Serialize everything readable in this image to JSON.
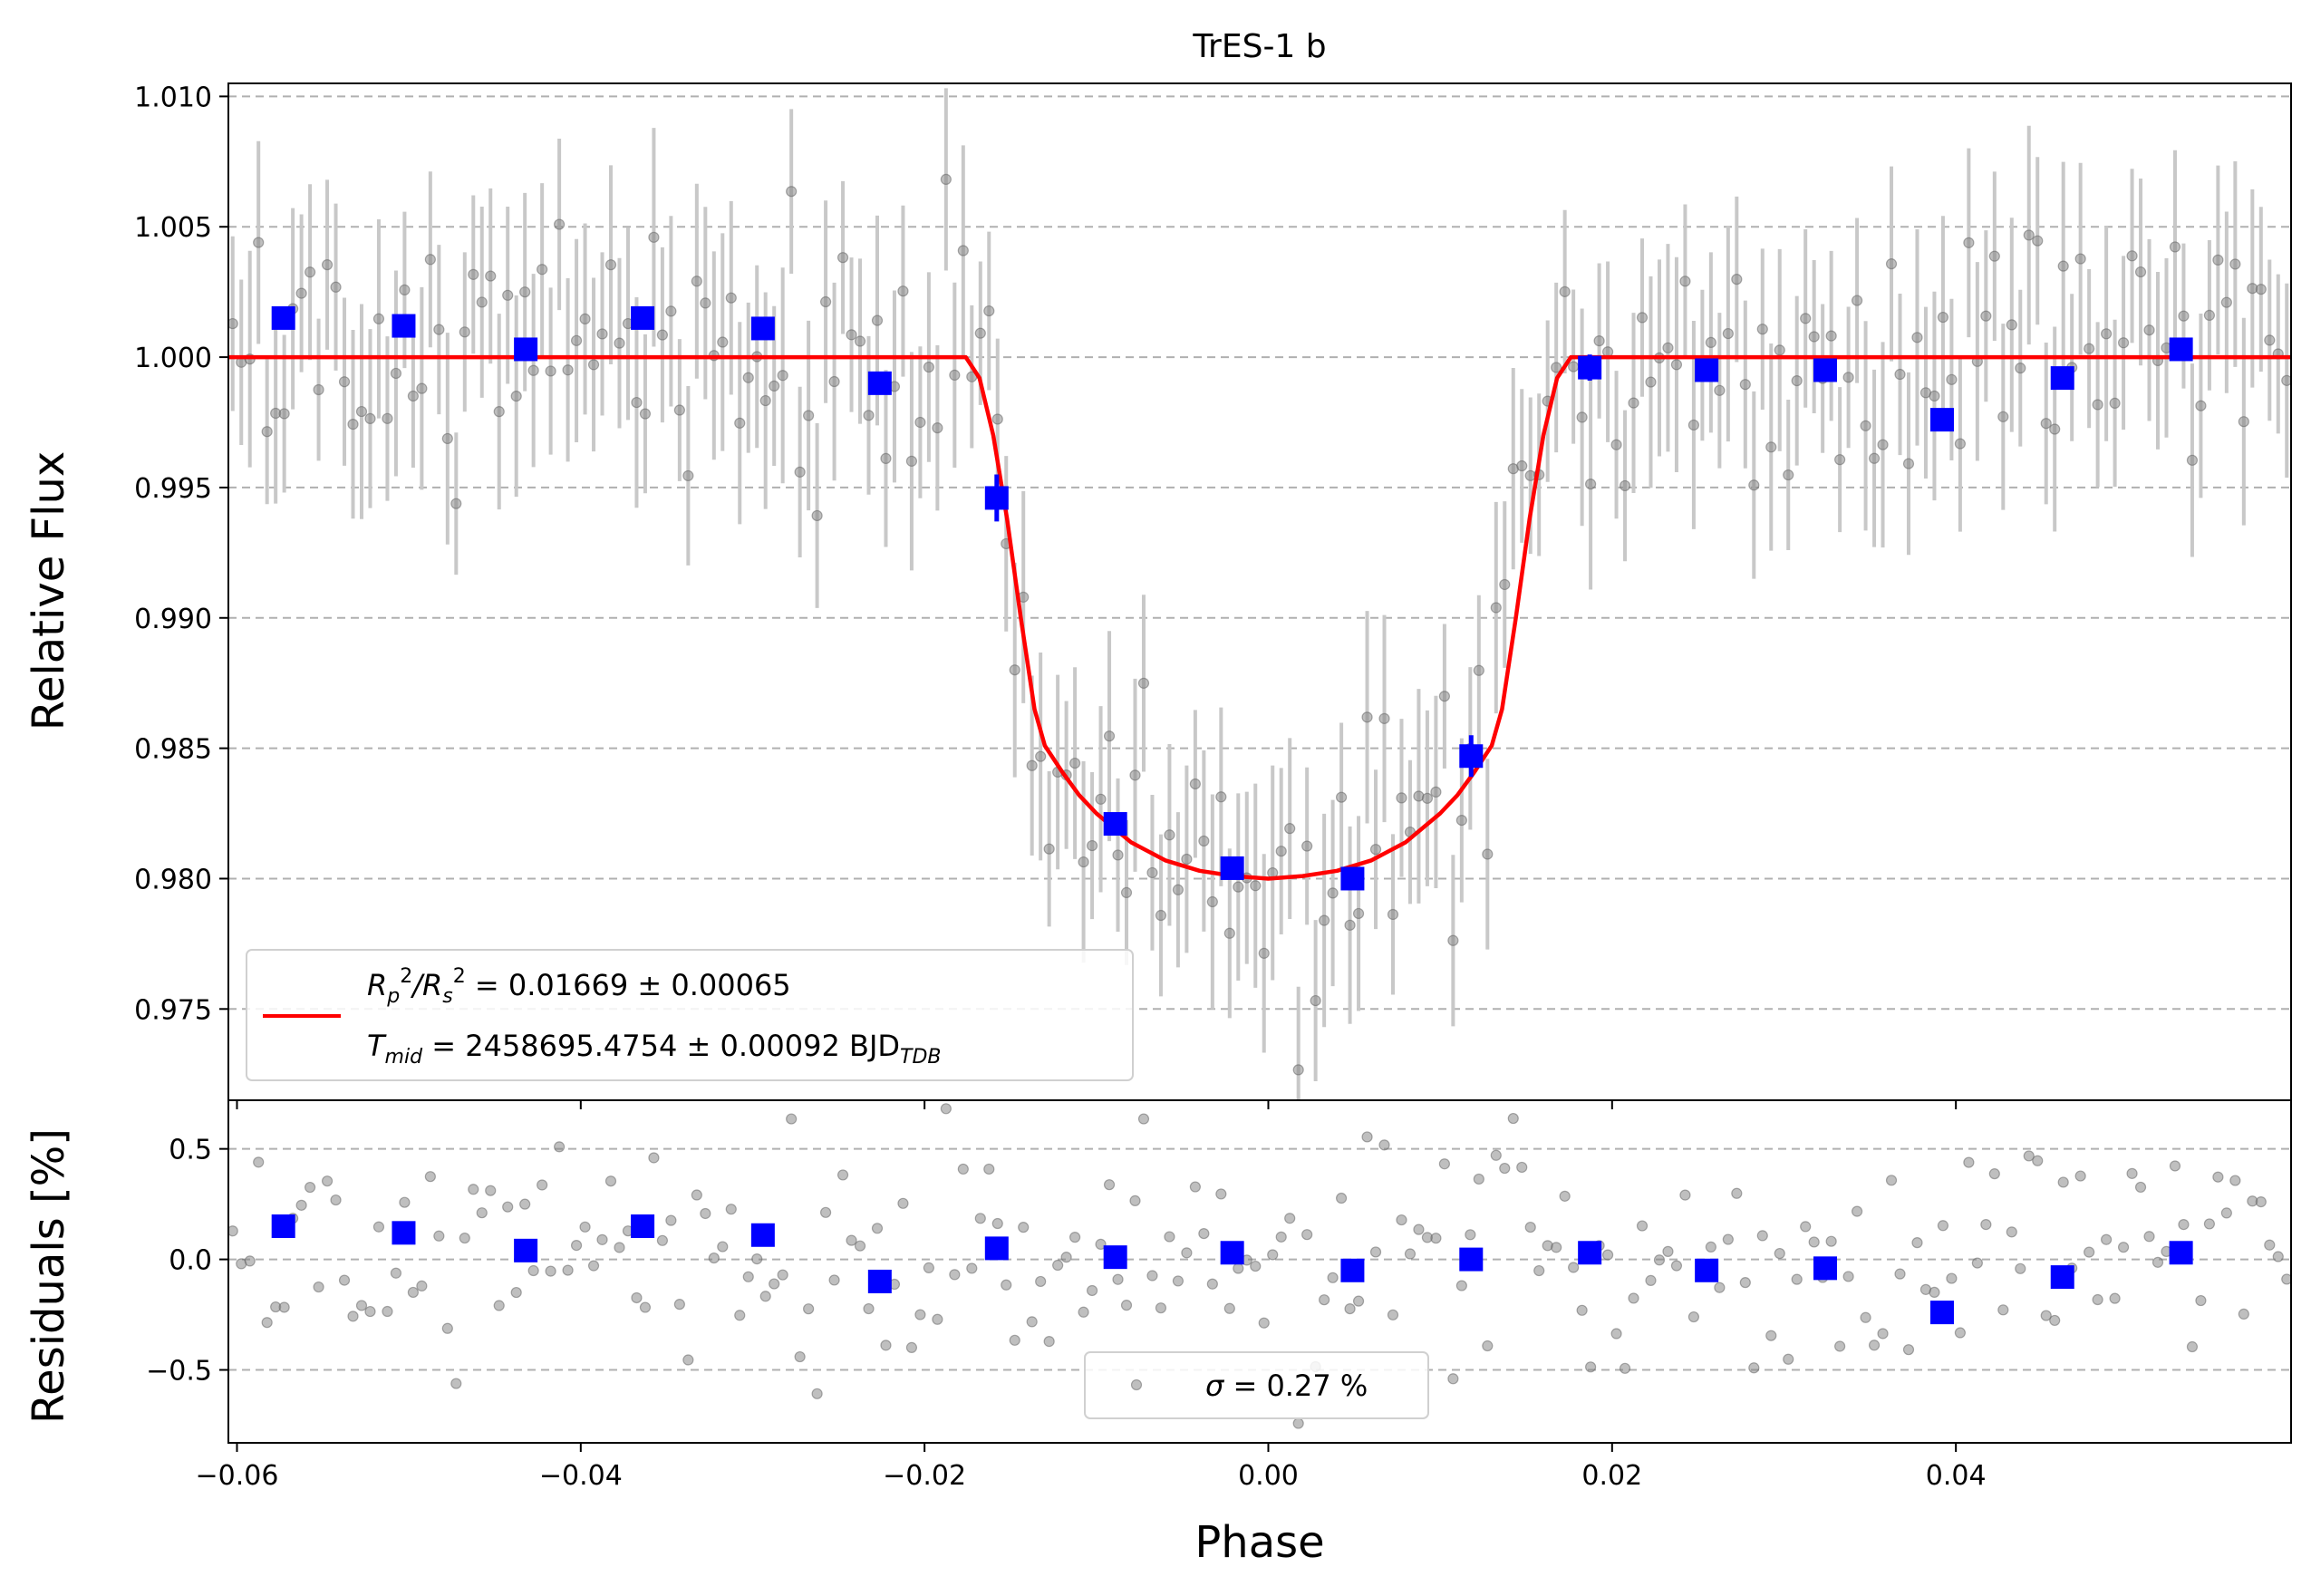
{
  "chart_data": [
    {
      "panel": "main",
      "type": "scatter",
      "title": "TrES-1 b",
      "xlabel": "",
      "ylabel": "Relative Flux",
      "xlim": [
        -0.0605,
        0.0595
      ],
      "ylim": [
        0.9715,
        1.0105
      ],
      "y_ticks": [
        "1.010",
        "1.005",
        "1.000",
        "0.995",
        "0.990",
        "0.985",
        "0.980",
        "0.975"
      ],
      "y_tick_values": [
        1.01,
        1.005,
        1.0,
        0.995,
        0.99,
        0.985,
        0.98,
        0.975
      ],
      "grid": "horizontal dashed",
      "colors": {
        "data": "#808080",
        "errorbar": "#c8c8c8",
        "binned": "#0000ff",
        "model": "#ff0000"
      },
      "model": {
        "name": "transit model",
        "x": [
          -0.0605,
          -0.0176,
          -0.0168,
          -0.016,
          -0.0152,
          -0.0144,
          -0.0136,
          -0.013,
          -0.012,
          -0.011,
          -0.01,
          -0.008,
          -0.006,
          -0.004,
          -0.002,
          0.0,
          0.002,
          0.004,
          0.006,
          0.008,
          0.01,
          0.011,
          0.012,
          0.013,
          0.0136,
          0.0144,
          0.0152,
          0.016,
          0.0168,
          0.0176,
          0.0595
        ],
        "y": [
          1.0,
          1.0,
          0.9992,
          0.997,
          0.9938,
          0.99,
          0.9865,
          0.9851,
          0.9841,
          0.9832,
          0.9825,
          0.9814,
          0.9807,
          0.9803,
          0.9801,
          0.98,
          0.9801,
          0.9803,
          0.9807,
          0.9814,
          0.9825,
          0.9832,
          0.9841,
          0.9851,
          0.9865,
          0.99,
          0.9938,
          0.997,
          0.9992,
          1.0,
          1.0
        ]
      },
      "binned": {
        "x": [
          -0.0573,
          -0.0503,
          -0.0432,
          -0.0364,
          -0.0294,
          -0.0226,
          -0.0158,
          -0.0089,
          -0.0021,
          0.0049,
          0.0118,
          0.0187,
          0.0255,
          0.0324,
          0.0392,
          0.0462,
          0.0531
        ],
        "y": [
          1.0015,
          1.0012,
          1.0003,
          1.0015,
          1.0011,
          0.999,
          0.9946,
          0.9821,
          0.9804,
          0.98,
          0.9847,
          0.9996,
          0.9995,
          0.9995,
          0.9976,
          0.9992,
          1.0003
        ],
        "err": [
          0.0004,
          0.0004,
          0.0004,
          0.0004,
          0.0004,
          0.0004,
          0.0009,
          0.0004,
          0.0004,
          0.0004,
          0.0008,
          0.0005,
          0.0003,
          0.0003,
          0.0004,
          0.0004,
          0.0004
        ]
      },
      "legend": {
        "placement": "lower-left",
        "line1": {
          "sym1": "R",
          "sub1": "p",
          "sup1": "2",
          "sep": "/",
          "sym2": "R",
          "sub2": "s",
          "sup2": "2",
          "value": " = 0.01669 ± 0.00065"
        },
        "line2": {
          "sym": "T",
          "sub": "mid",
          "value": " = 2458695.4754 ± 0.00092 BJD",
          "unit_sub": "TDB"
        }
      }
    },
    {
      "panel": "residuals",
      "type": "scatter",
      "xlabel": "Phase",
      "ylabel": "Residuals [%]",
      "xlim": [
        -0.0605,
        0.0595
      ],
      "ylim": [
        -0.83,
        0.72
      ],
      "x_ticks": [
        "−0.06",
        "−0.04",
        "−0.02",
        "0.00",
        "0.02",
        "0.04"
      ],
      "x_tick_values": [
        -0.06,
        -0.04,
        -0.02,
        0.0,
        0.02,
        0.04
      ],
      "y_ticks": [
        "0.5",
        "0.0",
        "−0.5"
      ],
      "y_tick_values": [
        0.5,
        0.0,
        -0.5
      ],
      "grid": "horizontal dashed",
      "binned": {
        "x": [
          -0.0573,
          -0.0503,
          -0.0432,
          -0.0364,
          -0.0294,
          -0.0226,
          -0.0158,
          -0.0089,
          -0.0021,
          0.0049,
          0.0118,
          0.0187,
          0.0255,
          0.0324,
          0.0392,
          0.0462,
          0.0531
        ],
        "y": [
          0.15,
          0.12,
          0.04,
          0.15,
          0.11,
          -0.1,
          0.05,
          0.01,
          0.03,
          -0.05,
          0.0,
          0.03,
          -0.05,
          -0.04,
          -0.24,
          -0.08,
          0.03
        ]
      },
      "legend": {
        "placement": "bottom-center",
        "sym": "σ",
        "value": " = 0.27 %"
      }
    }
  ]
}
